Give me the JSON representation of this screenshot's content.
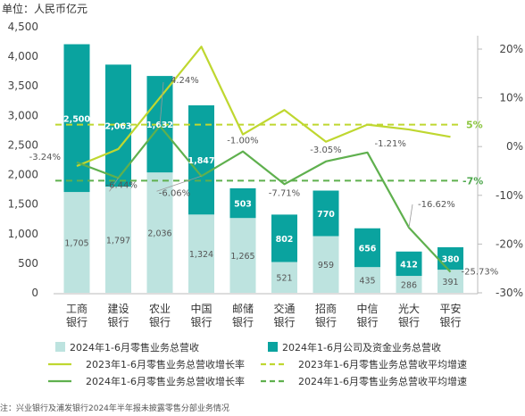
{
  "chart_data": {
    "type": "bar",
    "unit_label": "单位：人民币亿元",
    "categories": [
      [
        "工商",
        "银行"
      ],
      [
        "建设",
        "银行"
      ],
      [
        "农业",
        "银行"
      ],
      [
        "中国",
        "银行"
      ],
      [
        "邮储",
        "银行"
      ],
      [
        "交通",
        "银行"
      ],
      [
        "招商",
        "银行"
      ],
      [
        "中信",
        "银行"
      ],
      [
        "光大",
        "银行"
      ],
      [
        "平安",
        "银行"
      ]
    ],
    "left_axis": {
      "ticks": [
        "0",
        "500",
        "1,000",
        "1,500",
        "2,000",
        "2,500",
        "3,000",
        "3,500",
        "4,000",
        "4,500"
      ],
      "ylim": [
        0,
        4500
      ]
    },
    "right_axis": {
      "ticks": [
        "-30%",
        "-20%",
        "-10%",
        "0%",
        "10%",
        "20%"
      ],
      "ylim": [
        -30,
        20
      ]
    },
    "series": [
      {
        "name": "2024年1-6月零售业务总营收",
        "kind": "bar",
        "color": "#bde3df",
        "values": [
          1705,
          1797,
          2036,
          1324,
          1265,
          521,
          959,
          435,
          286,
          391
        ],
        "labels": [
          "1,705",
          "1,797",
          "2,036",
          "1,324",
          "1,265",
          "521",
          "959",
          "435",
          "286",
          "391"
        ]
      },
      {
        "name": "2024年1-6月公司及资金业务总营收",
        "kind": "bar",
        "color": "#0aa39f",
        "values": [
          2500,
          2063,
          1632,
          1847,
          503,
          802,
          770,
          656,
          412,
          380
        ],
        "labels": [
          "2,500",
          "2,063",
          "1,632",
          "1,847",
          "503",
          "802",
          "770",
          "656",
          "412",
          "380"
        ]
      },
      {
        "name": "2023年1-6月零售业务总营收增长率",
        "kind": "line",
        "color": "#bfd730",
        "values": [
          -4.0,
          -0.5,
          10.0,
          20.5,
          2.5,
          7.5,
          1.0,
          4.5,
          3.5,
          2.0
        ]
      },
      {
        "name": "2024年1-6月零售业务总营收增长率",
        "kind": "line",
        "color": "#5fb04e",
        "values": [
          -3.24,
          -6.44,
          4.24,
          -6.06,
          -1.0,
          -7.71,
          -3.05,
          -1.21,
          -16.62,
          -25.73
        ],
        "labels": [
          "-3.24%",
          "-6.44%",
          "4.24%",
          "-6.06%",
          "-1.00%",
          "-7.71%",
          "-3.05%",
          "-1.21%",
          "-16.62%",
          "-25.73%"
        ]
      },
      {
        "name": "2023年1-6月零售业务总营收平均增速",
        "kind": "avg",
        "color": "#bfd730",
        "value": 4.5,
        "label": "5%"
      },
      {
        "name": "2024年1-6月零售业务总营收平均增速",
        "kind": "avg",
        "color": "#5fb04e",
        "value": -7.0,
        "label": "-7%"
      }
    ],
    "legend_placement": "bottom",
    "note": "注：兴业银行及浦发银行2024年半年报未披露零售分部业务情况"
  },
  "colors": {
    "retail_bar": "#bde3df",
    "corporate_bar": "#0aa39f",
    "line_2023": "#bfd730",
    "line_2024": "#5fb04e",
    "axis": "#bbbbbb"
  }
}
